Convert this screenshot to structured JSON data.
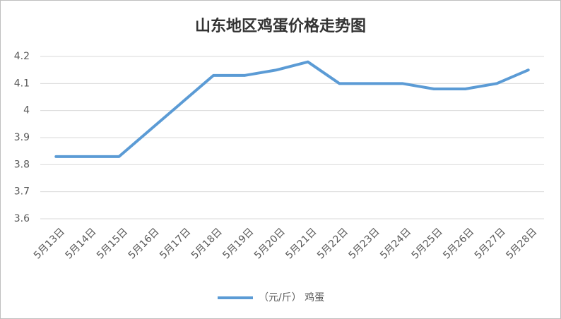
{
  "chart_data": {
    "type": "line",
    "title": "山东地区鸡蛋价格走势图",
    "categories": [
      "5月13日",
      "5月14日",
      "5月15日",
      "5月16日",
      "5月17日",
      "5月18日",
      "5月19日",
      "5月20日",
      "5月21日",
      "5月22日",
      "5月23日",
      "5月24日",
      "5月25日",
      "5月26日",
      "5月27日",
      "5月28日"
    ],
    "series": [
      {
        "name": "（元/斤） 鸡蛋",
        "color": "#5b9bd5",
        "values": [
          3.83,
          3.83,
          3.83,
          3.93,
          4.03,
          4.13,
          4.13,
          4.15,
          4.18,
          4.1,
          4.1,
          4.1,
          4.08,
          4.08,
          4.1,
          4.15
        ]
      }
    ],
    "ylim": [
      3.6,
      4.2
    ],
    "yticks": [
      3.6,
      3.7,
      3.8,
      3.9,
      4,
      4.1,
      4.2
    ],
    "grid": true,
    "legend": "bottom"
  }
}
